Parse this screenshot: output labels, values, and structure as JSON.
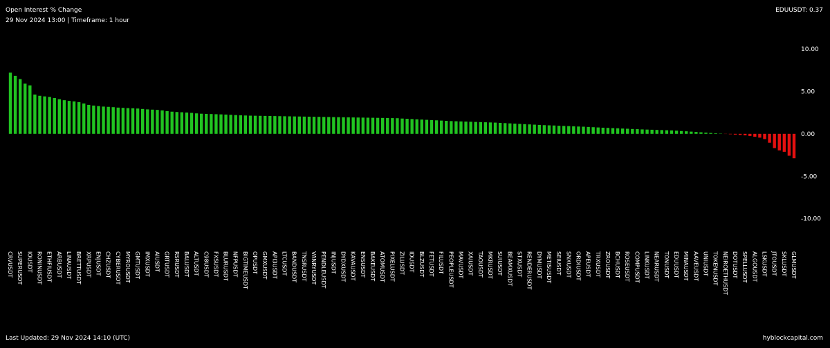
{
  "chart_data": {
    "type": "bar",
    "title": "Open Interest % Change",
    "subtitle": "29 Nov 2024 13:00 | Timeframe: 1 hour",
    "highlight": "EDUUSDT: 0.37",
    "footer": "Last Updated: 29 Nov 2024 14:10 (UTC)",
    "source": "hyblockcapital.com",
    "colors": {
      "positive": "#21c421",
      "negative": "#e41010"
    },
    "categories": [
      "CRVUSDT",
      null,
      "SUPERUSDT",
      null,
      "IOUSDT",
      null,
      "RONINUSDT",
      null,
      "ETHFIUSDT",
      null,
      "ARBUSDT",
      null,
      "LINAUSDT",
      null,
      "BRETTUSDT",
      null,
      "XRPUSDT",
      null,
      "ENJUSDT",
      null,
      "CHZUSDT",
      null,
      "CYBERUSDT",
      null,
      "MYROUSDT",
      null,
      "GMTUSDT",
      null,
      "IMXUSDT",
      null,
      "AIUSDT",
      null,
      "GRTUSDT",
      null,
      "RSRUSDT",
      null,
      "BALUSDT",
      null,
      "ALTUSDT",
      null,
      "C98USDT",
      null,
      "FXSUSDT",
      null,
      "BLURUSDT",
      null,
      "NFPUSDT",
      null,
      "BIGTIMEUSDT",
      null,
      "OPUSDT",
      null,
      "GMXUSDT",
      null,
      "API3USDT",
      null,
      "LTCUSDT",
      null,
      "BANDUSDT",
      null,
      "TNSRUSDT",
      null,
      "VANRYUSDT",
      null,
      "PENDLEUSDT",
      null,
      "INJUSDT",
      null,
      "DYDXUSDT",
      null,
      "KAVAUSDT",
      null,
      "ENSUSDT",
      null,
      "BAKEUSDT",
      null,
      "ATOMUSDT",
      null,
      "PIXELUSDT",
      null,
      "ZILUSDT",
      null,
      "IDUSDT",
      null,
      "BLZUSDT",
      null,
      "FETUSDT",
      null,
      "FILUSDT",
      null,
      "PEOPLEUSDT",
      null,
      "MAVUSDT",
      null,
      "XAIUSDT",
      null,
      "TAOUSDT",
      null,
      "MKRUSDT",
      null,
      "SUIUSDT",
      null,
      "BEAMXUSDT",
      null,
      "STXUSDT",
      null,
      "RENDERUSDT",
      null,
      "DYMUSDT",
      null,
      "METISUSDT",
      null,
      "SEIUSDT",
      null,
      "SNXUSDT",
      null,
      "ORDIUSDT",
      null,
      "APEUSDT",
      null,
      "TRXUSDT",
      null,
      "ZROUSDT",
      null,
      "BCHUSDT",
      null,
      "ROSEUSDT",
      null,
      "COMPUSDT",
      null,
      "LINKUSDT",
      null,
      "NEARUSDT",
      null,
      "TONUSDT",
      null,
      "EDUUSDT",
      null,
      "MINAUSDT",
      null,
      "AAVEUSDT",
      null,
      "UNIUSDT",
      null,
      "TOKENUSDT",
      null,
      "NEIROETHUSDT",
      null,
      "DOTUSDT",
      null,
      "SPELLUSDT",
      null,
      "ALGOUSDT",
      null,
      "LSKUSDT",
      null,
      "JTOUSDT",
      null,
      "SKLUSDT",
      null,
      "GLMUSDT"
    ],
    "values": [
      7.21,
      6.83,
      6.45,
      5.92,
      5.71,
      4.63,
      4.48,
      4.41,
      4.35,
      4.22,
      4.08,
      3.96,
      3.88,
      3.82,
      3.74,
      3.58,
      3.41,
      3.33,
      3.27,
      3.21,
      3.18,
      3.14,
      3.09,
      3.06,
      3.03,
      3.01,
      2.98,
      2.93,
      2.88,
      2.85,
      2.82,
      2.76,
      2.68,
      2.61,
      2.57,
      2.54,
      2.51,
      2.47,
      2.41,
      2.37,
      2.35,
      2.33,
      2.31,
      2.29,
      2.27,
      2.24,
      2.21,
      2.18,
      2.16,
      2.14,
      2.13,
      2.12,
      2.11,
      2.1,
      2.09,
      2.08,
      2.07,
      2.06,
      2.05,
      2.04,
      2.03,
      2.02,
      2.01,
      2.0,
      1.99,
      1.98,
      1.97,
      1.96,
      1.95,
      1.94,
      1.93,
      1.92,
      1.91,
      1.9,
      1.89,
      1.88,
      1.87,
      1.86,
      1.85,
      1.84,
      1.8,
      1.77,
      1.74,
      1.71,
      1.68,
      1.65,
      1.62,
      1.59,
      1.56,
      1.53,
      1.5,
      1.48,
      1.46,
      1.44,
      1.42,
      1.4,
      1.38,
      1.36,
      1.34,
      1.32,
      1.29,
      1.26,
      1.23,
      1.2,
      1.17,
      1.14,
      1.11,
      1.08,
      1.05,
      1.02,
      1.0,
      0.98,
      0.95,
      0.93,
      0.91,
      0.88,
      0.86,
      0.84,
      0.81,
      0.78,
      0.75,
      0.72,
      0.7,
      0.67,
      0.65,
      0.62,
      0.6,
      0.57,
      0.55,
      0.52,
      0.5,
      0.48,
      0.46,
      0.44,
      0.42,
      0.4,
      0.37,
      0.33,
      0.3,
      0.26,
      0.22,
      0.18,
      0.14,
      0.1,
      0.06,
      0.03,
      -0.02,
      -0.05,
      -0.09,
      -0.13,
      -0.18,
      -0.25,
      -0.34,
      -0.45,
      -0.62,
      -1.05,
      -1.68,
      -1.95,
      -2.12,
      -2.58,
      -2.88
    ],
    "ylim": [
      -12.3,
      11.7
    ],
    "yticks": [
      {
        "value": 10,
        "label": "10.00"
      },
      {
        "value": 5,
        "label": "5.00"
      },
      {
        "value": 0,
        "label": "0.00"
      },
      {
        "value": -5,
        "label": "-5.00"
      },
      {
        "value": -10,
        "label": "-10.00"
      }
    ]
  }
}
